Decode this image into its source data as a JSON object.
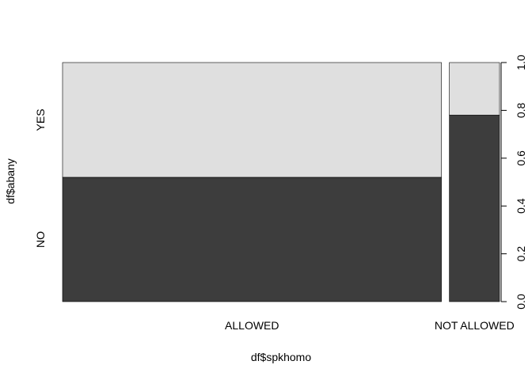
{
  "chart_data": {
    "type": "bar",
    "subtype": "spineplot",
    "xlabel": "df$spkhomo",
    "ylabel": "df$abany",
    "categories": [
      "ALLOWED",
      "NOT ALLOWED"
    ],
    "category_share": [
      0.883,
      0.117
    ],
    "series": [
      {
        "name": "NO",
        "values": [
          0.52,
          0.78
        ],
        "color": "#3d3d3d"
      },
      {
        "name": "YES",
        "values": [
          0.48,
          0.22
        ],
        "color": "#dfdfdf"
      }
    ],
    "ylim": [
      0,
      1
    ],
    "yticks": [
      "0.0",
      "0.2",
      "0.4",
      "0.6",
      "0.8",
      "1.0"
    ],
    "left_tick_labels": [
      "NO",
      "YES"
    ],
    "grid": false,
    "legend": "none"
  }
}
